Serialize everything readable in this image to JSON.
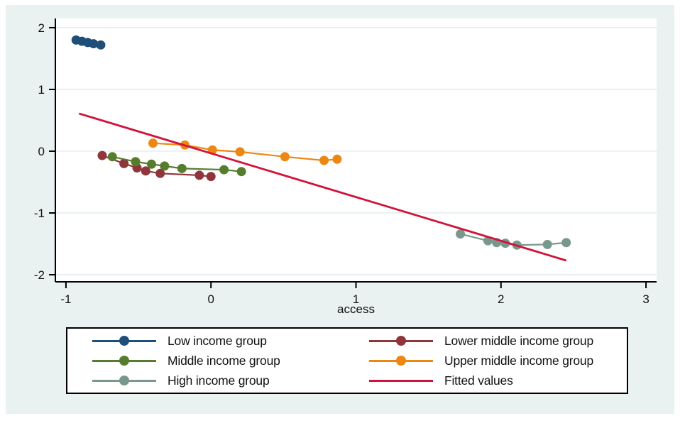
{
  "page": {
    "background": "#ffffff",
    "figure_background": "#e9f1f1",
    "plot_background": "#ffffff",
    "grid_color": "#dfecec",
    "axis_color": "#000000",
    "text_color": "#111111"
  },
  "chart_data": {
    "type": "line",
    "title": "",
    "xlabel": "access",
    "ylabel": "",
    "x_ticks": [
      -1,
      0,
      1,
      2,
      3
    ],
    "y_ticks": [
      2,
      1,
      0,
      -1,
      -2
    ],
    "xlim": [
      -1.073,
      3.073
    ],
    "ylim": [
      -2.115,
      2.149
    ],
    "grid": "horizontal",
    "legend_position": "bottom",
    "series": [
      {
        "name": "Low income group",
        "color": "#1f4e79",
        "marker": "circle",
        "points": [
          [
            -0.93,
            1.8
          ],
          [
            -0.89,
            1.78
          ],
          [
            -0.85,
            1.76
          ],
          [
            -0.81,
            1.74
          ],
          [
            -0.76,
            1.72
          ]
        ]
      },
      {
        "name": "Lower middle income group",
        "color": "#90353b",
        "marker": "circle",
        "points": [
          [
            -0.75,
            -0.07
          ],
          [
            -0.6,
            -0.2
          ],
          [
            -0.51,
            -0.27
          ],
          [
            -0.45,
            -0.32
          ],
          [
            -0.35,
            -0.36
          ],
          [
            -0.08,
            -0.39
          ],
          [
            0.0,
            -0.41
          ]
        ]
      },
      {
        "name": "Middle income group",
        "color": "#567d2e",
        "marker": "circle",
        "points": [
          [
            -0.68,
            -0.09
          ],
          [
            -0.52,
            -0.17
          ],
          [
            -0.41,
            -0.21
          ],
          [
            -0.32,
            -0.24
          ],
          [
            -0.2,
            -0.28
          ],
          [
            0.09,
            -0.3
          ],
          [
            0.21,
            -0.33
          ]
        ]
      },
      {
        "name": "Upper middle income group",
        "color": "#ec8712",
        "marker": "circle",
        "points": [
          [
            -0.4,
            0.13
          ],
          [
            -0.18,
            0.1
          ],
          [
            0.01,
            0.02
          ],
          [
            0.2,
            -0.01
          ],
          [
            0.51,
            -0.09
          ],
          [
            0.78,
            -0.15
          ],
          [
            0.87,
            -0.13
          ]
        ]
      },
      {
        "name": "High income group",
        "color": "#79988c",
        "marker": "circle",
        "points": [
          [
            1.72,
            -1.34
          ],
          [
            1.91,
            -1.45
          ],
          [
            1.97,
            -1.48
          ],
          [
            2.03,
            -1.49
          ],
          [
            2.11,
            -1.52
          ],
          [
            2.32,
            -1.51
          ],
          [
            2.45,
            -1.48
          ]
        ]
      },
      {
        "name": "Fitted values",
        "color": "#d1133a",
        "marker": "none",
        "points": [
          [
            -0.91,
            0.61
          ],
          [
            2.45,
            -1.77
          ]
        ]
      }
    ]
  }
}
